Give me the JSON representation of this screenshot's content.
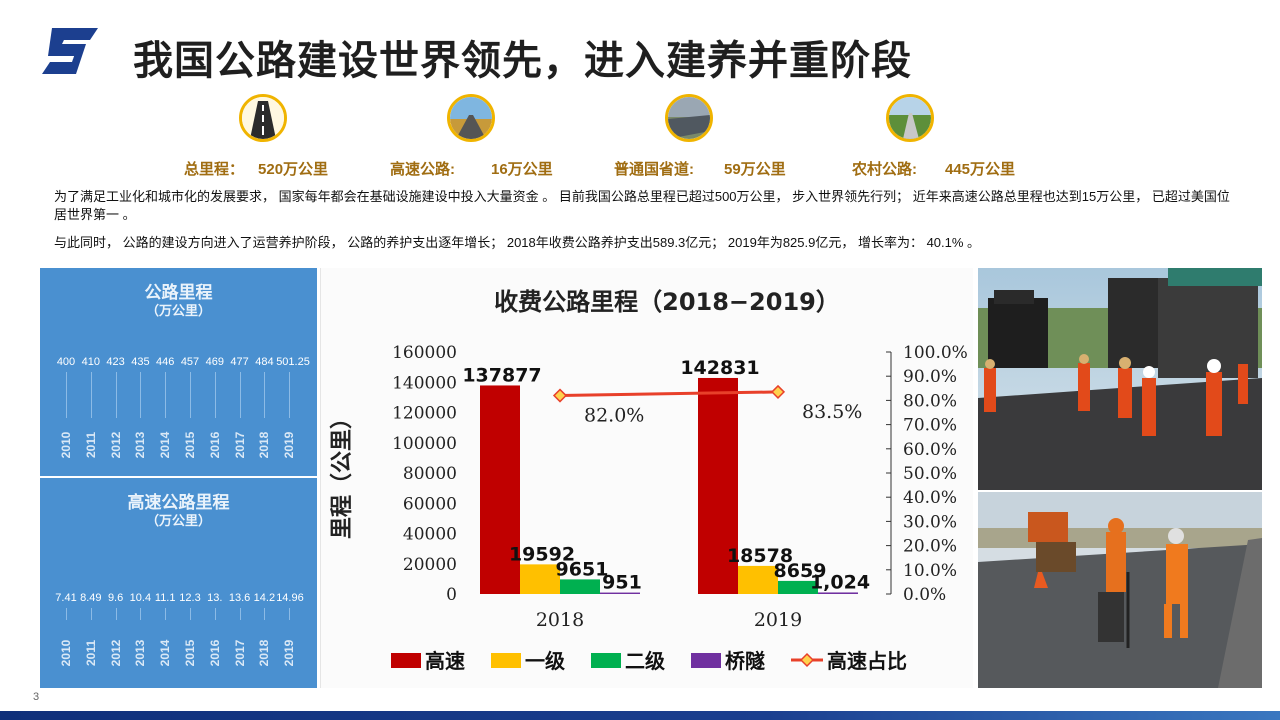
{
  "header": {
    "title": "我国公路建设世界领先，进入建养并重阶段"
  },
  "icons": [
    "road-icon",
    "highway-icon",
    "national-road-icon",
    "rural-road-icon"
  ],
  "stats": [
    {
      "label": "总里程：",
      "value": "520万公里"
    },
    {
      "label": "高速公路:",
      "value": "16万公里"
    },
    {
      "label": "普通国省道:",
      "value": "59万公里"
    },
    {
      "label": "农村公路:",
      "value": "445万公里"
    }
  ],
  "paragraphs": {
    "p1": "为了满足工业化和城市化的发展要求，  国家每年都会在基础设施建设中投入大量资金 。  目前我国公路总里程已超过500万公里，  步入世界领先行列；  近年来高速公路总里程也达到15万公里，  已超过美国位居世界第一 。",
    "p2": "与此同时，  公路的建设方向进入了运营养护阶段，  公路的养护支出逐年增长；  2018年收费公路养护支出589.3亿元；  2019年为825.9亿元，  增长率为：  40.1% 。"
  },
  "panel_road": {
    "title": "公路里程",
    "subtitle": "（万公里）",
    "years": [
      "2010",
      "2011",
      "2012",
      "2013",
      "2014",
      "2015",
      "2016",
      "2017",
      "2018",
      "2019"
    ],
    "values": [
      "400",
      "410",
      "423",
      "435",
      "446",
      "457",
      "469",
      "477",
      "484",
      "501.25"
    ]
  },
  "panel_expressway": {
    "title": "高速公路里程",
    "subtitle": "（万公里）",
    "years": [
      "2010",
      "2011",
      "2012",
      "2013",
      "2014",
      "2015",
      "2016",
      "2017",
      "2018",
      "2019"
    ],
    "values": [
      "7.41",
      "8.49",
      "9.6",
      "10.4",
      "11.1",
      "12.3",
      "13.",
      "13.6",
      "14.2",
      "14.96"
    ]
  },
  "chart_data": {
    "type": "bar",
    "title": "收费公路里程（2018−2019）",
    "ylabel": "里程（公里）",
    "categories": [
      "2018",
      "2019"
    ],
    "ylim": [
      0,
      160000
    ],
    "yticks": [
      "0",
      "20000",
      "40000",
      "60000",
      "80000",
      "100000",
      "120000",
      "140000",
      "160000"
    ],
    "y2lim": [
      0,
      100
    ],
    "y2ticks": [
      "0.0%",
      "10.0%",
      "20.0%",
      "30.0%",
      "40.0%",
      "50.0%",
      "60.0%",
      "70.0%",
      "80.0%",
      "90.0%",
      "100.0%"
    ],
    "series": [
      {
        "name": "高速",
        "values": [
          137877,
          142831
        ],
        "labels": [
          "137877",
          "142831"
        ],
        "color": "#c00000"
      },
      {
        "name": "一级",
        "values": [
          19592,
          18578
        ],
        "labels": [
          "19592",
          "18578"
        ],
        "color": "#ffc000"
      },
      {
        "name": "二级",
        "values": [
          9651,
          8659
        ],
        "labels": [
          "9651",
          "8659"
        ],
        "color": "#00b050"
      },
      {
        "name": "桥隧",
        "values": [
          951,
          1024
        ],
        "labels": [
          "951",
          "1,024"
        ],
        "color": "#7030a0"
      }
    ],
    "line_series": {
      "name": "高速占比",
      "values": [
        82.0,
        83.5
      ],
      "labels": [
        "82.0%",
        "83.5%"
      ],
      "color": "#e8402a"
    },
    "legend_position": "bottom",
    "grid": false
  },
  "page_number": "3"
}
